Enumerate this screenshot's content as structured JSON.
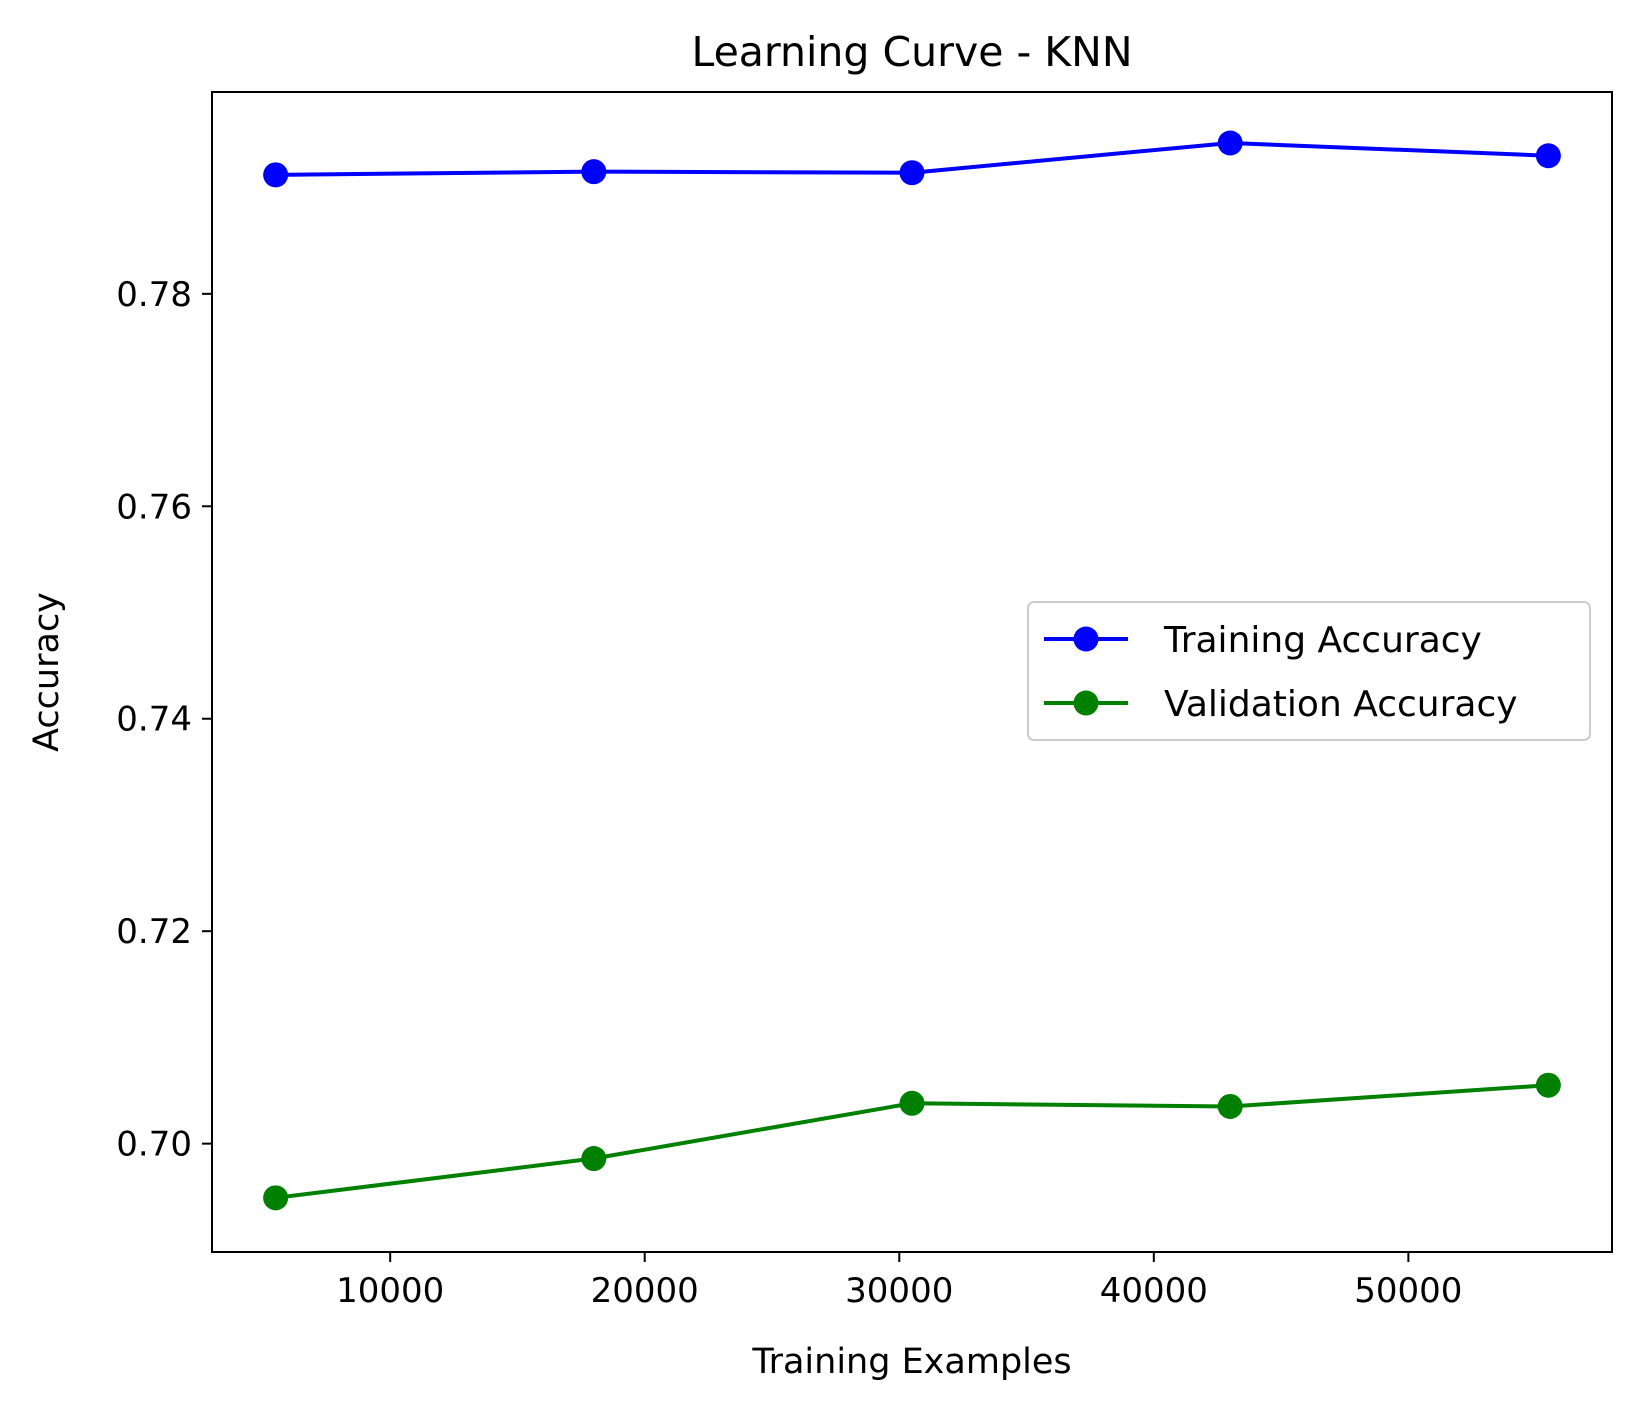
{
  "chart_data": {
    "type": "line",
    "title": "Learning Curve - KNN",
    "xlabel": "Training Examples",
    "ylabel": "Accuracy",
    "xlim": [
      3000,
      58000
    ],
    "ylim": [
      0.6898,
      0.799
    ],
    "x_ticks": [
      10000,
      20000,
      30000,
      40000,
      50000
    ],
    "x_tick_labels": [
      "10000",
      "20000",
      "30000",
      "40000",
      "50000"
    ],
    "y_ticks": [
      0.7,
      0.72,
      0.74,
      0.76,
      0.78
    ],
    "y_tick_labels": [
      "0.70",
      "0.72",
      "0.74",
      "0.76",
      "0.78"
    ],
    "x": [
      5500,
      18000,
      30500,
      43000,
      55500
    ],
    "series": [
      {
        "name": "Training Accuracy",
        "color": "#0000ff",
        "marker": "circle",
        "values": [
          0.7912,
          0.7915,
          0.7914,
          0.7942,
          0.793
        ]
      },
      {
        "name": "Validation Accuracy",
        "color": "#008000",
        "marker": "circle",
        "values": [
          0.6949,
          0.6986,
          0.7038,
          0.7035,
          0.7055
        ]
      }
    ],
    "grid": false,
    "legend_position": "center-right"
  }
}
